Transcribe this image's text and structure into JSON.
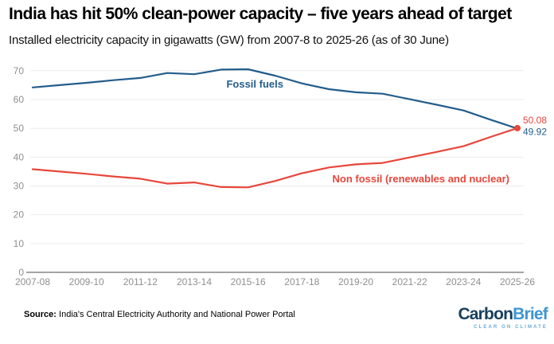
{
  "header": {
    "title": "India has hit 50% clean-power capacity – five years ahead of target",
    "subtitle": "Installed electricity capacity in gigawatts (GW) from 2007-8 to 2025-26 (as of 30 June)"
  },
  "footer": {
    "source_label": "Source:",
    "source_text": "India's Central Electricity Authority and National Power Portal"
  },
  "logo": {
    "carbon": "Carbon",
    "brief": "Brief",
    "tagline": "CLEAR ON CLIMATE",
    "carbon_color": "#17405e",
    "brief_color": "#3d96d2",
    "tagline_color": "#6aabd6"
  },
  "chart_data": {
    "type": "line",
    "title": "India has hit 50% clean-power capacity – five years ahead of target",
    "subtitle": "Installed electricity capacity in gigawatts (GW) from 2007-8 to 2025-26 (as of 30 June)",
    "xlabel": "",
    "ylabel": "",
    "ylim": [
      0,
      70
    ],
    "y_ticks": [
      0,
      10,
      20,
      30,
      40,
      50,
      60,
      70
    ],
    "grid": true,
    "legend_position": "inline-labels",
    "x": [
      "2007-08",
      "2008-09",
      "2009-10",
      "2010-11",
      "2011-12",
      "2012-13",
      "2013-14",
      "2014-15",
      "2015-16",
      "2016-17",
      "2017-18",
      "2018-19",
      "2019-20",
      "2020-21",
      "2021-22",
      "2022-23",
      "2023-24",
      "2024-25",
      "2025-26"
    ],
    "x_tick_labels": [
      "2007-08",
      "2009-10",
      "2011-12",
      "2013-14",
      "2015-16",
      "2017-18",
      "2019-20",
      "2021-22",
      "2023-24",
      "2025-26"
    ],
    "axis_color": "#a3a3a3",
    "gridline_color": "#ebebeb",
    "tick_label_color": "#8f8f8f",
    "series": [
      {
        "name": "Fossil fuels",
        "color": "#235d8b",
        "values": [
          64.2,
          65.0,
          65.8,
          66.7,
          67.5,
          69.2,
          68.8,
          70.4,
          70.5,
          68.3,
          65.6,
          63.6,
          62.5,
          62.0,
          60.1,
          58.2,
          56.2,
          53.0,
          49.92
        ],
        "end_label": "49.92",
        "end_marker": false
      },
      {
        "name": "Non fossil (renewables and nuclear)",
        "color": "#e8463b",
        "values": [
          35.8,
          35.0,
          34.2,
          33.3,
          32.5,
          30.8,
          31.2,
          29.6,
          29.5,
          31.7,
          34.4,
          36.4,
          37.5,
          38.0,
          39.9,
          41.8,
          43.8,
          47.0,
          50.08
        ],
        "end_label": "50.08",
        "end_marker": true
      }
    ]
  }
}
